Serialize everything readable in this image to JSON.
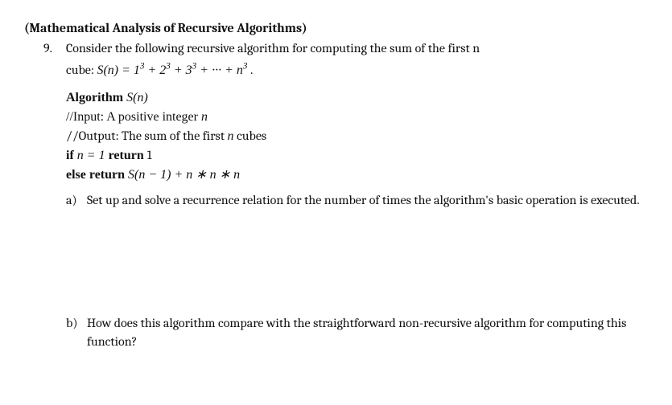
{
  "title": "(Mathematical Analysis of Recursive Algorithms)",
  "problem": {
    "number": "9.",
    "intro": "Consider the following recursive algorithm for computing the sum of the first n",
    "equation_prefix": "cube: ",
    "equation_Sn": "S(n) = 1",
    "equation_sup": "3",
    "equation_mid1": " + 2",
    "equation_mid2": " + 3",
    "equation_dots": " + ··· + n",
    "equation_end": " ."
  },
  "algorithm": {
    "header_kw": "Algorithm ",
    "header_fn": "S(n)",
    "input": "//Input: A positive integer ",
    "input_n": "n",
    "output": "//Output: The sum of the first ",
    "output_n": "n",
    "output_tail": " cubes",
    "if_kw": "if ",
    "if_cond": "n = 1 ",
    "return_kw": "return ",
    "return_val": "1",
    "else_kw": "else return ",
    "else_expr": "S(n − 1) + n ∗ n ∗ n"
  },
  "parts": {
    "a_label": "a)",
    "a_text": "Set up and solve a recurrence relation for the number of times the algorithm's basic operation is executed.",
    "b_label": "b)",
    "b_text": "How does this algorithm compare with the straightforward non-recursive algorithm for computing this function?"
  }
}
